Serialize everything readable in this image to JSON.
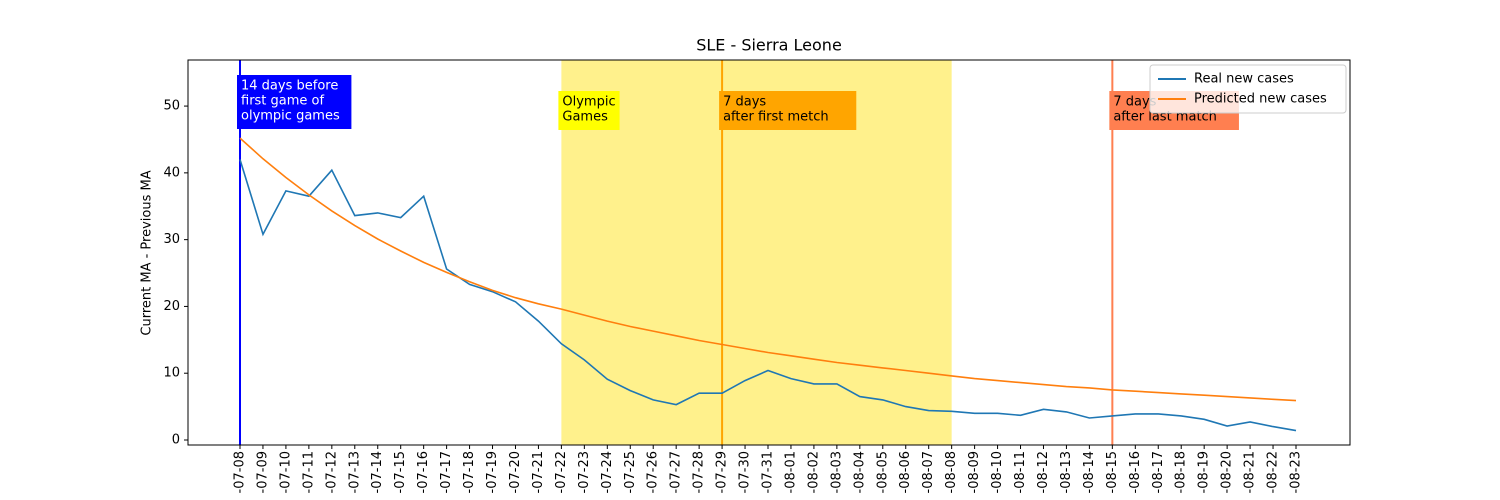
{
  "chart_data": {
    "type": "line",
    "title": "SLE - Sierra Leone",
    "y_label": "Current MA - Previous MA",
    "categories": [
      "-07-08",
      "-07-09",
      "-07-10",
      "-07-11",
      "-07-12",
      "-07-13",
      "-07-14",
      "-07-15",
      "-07-16",
      "-07-17",
      "-07-18",
      "-07-19",
      "-07-20",
      "-07-21",
      "-07-22",
      "-07-23",
      "-07-24",
      "-07-25",
      "-07-26",
      "-07-27",
      "-07-28",
      "-07-29",
      "-07-30",
      "-07-31",
      "-08-01",
      "-08-02",
      "-08-03",
      "-08-04",
      "-08-05",
      "-08-06",
      "-08-07",
      "-08-08",
      "-08-09",
      "-08-10",
      "-08-11",
      "-08-12",
      "-08-13",
      "-08-14",
      "-08-15",
      "-08-16",
      "-08-17",
      "-08-18",
      "-08-19",
      "-08-20",
      "-08-21",
      "-08-22",
      "-08-23"
    ],
    "series": [
      {
        "name": "Real new cases",
        "color": "#1f77b4",
        "values": [
          42,
          30.8,
          37.3,
          36.5,
          40.4,
          33.6,
          34,
          33.3,
          36.5,
          25.6,
          23.3,
          22.2,
          20.7,
          17.8,
          14.4,
          12,
          9.1,
          7.4,
          6,
          5.3,
          7,
          7,
          8.9,
          10.4,
          9.2,
          8.4,
          8.4,
          6.5,
          6,
          5,
          4.4,
          4.3,
          4,
          4,
          3.7,
          4.6,
          4.2,
          3.3,
          3.6,
          3.9,
          3.9,
          3.6,
          3.1,
          2.1,
          2.7,
          2,
          1.4
        ]
      },
      {
        "name": "Predicted new cases",
        "color": "#ff7f0e",
        "values": [
          45.2,
          42.1,
          39.3,
          36.7,
          34.3,
          32.1,
          30.1,
          28.3,
          26.6,
          25.1,
          23.7,
          22.4,
          21.3,
          20.4,
          19.6,
          18.7,
          17.8,
          17,
          16.3,
          15.6,
          14.9,
          14.3,
          13.7,
          13.1,
          12.6,
          12.1,
          11.6,
          11.2,
          10.8,
          10.4,
          10,
          9.6,
          9.2,
          8.9,
          8.6,
          8.3,
          8,
          7.8,
          7.5,
          7.3,
          7.1,
          6.9,
          6.7,
          6.5,
          6.3,
          6.1,
          5.9
        ]
      }
    ],
    "ylim": [
      -0.75,
      56.9
    ],
    "yticks": [
      0,
      10,
      20,
      30,
      40,
      50
    ],
    "span": {
      "from": "-07-22",
      "to": "-08-08",
      "color": "#fff080"
    },
    "vlines": [
      {
        "x": "-07-08",
        "color": "#0000ff"
      },
      {
        "x": "-07-29",
        "color": "#ffa500"
      },
      {
        "x": "-08-15",
        "color": "#ff7f50"
      }
    ],
    "annotations": [
      {
        "x": "-07-08",
        "lines": [
          "14 days before",
          "first game of",
          "olympic games"
        ],
        "background": "#0000ff",
        "text_color": "#ffffff"
      },
      {
        "x": "-07-22",
        "lines": [
          "Olympic",
          "Games"
        ],
        "background": "#ffff00",
        "text_color": "#000000"
      },
      {
        "x": "-07-29",
        "lines": [
          "7 days",
          "after first metch"
        ],
        "background": "#ffa500",
        "text_color": "#000000"
      },
      {
        "x": "-08-15",
        "lines": [
          "7 days",
          "after last match"
        ],
        "background": "#ff7f50",
        "text_color": "#000000"
      }
    ],
    "legend": "upper right"
  }
}
